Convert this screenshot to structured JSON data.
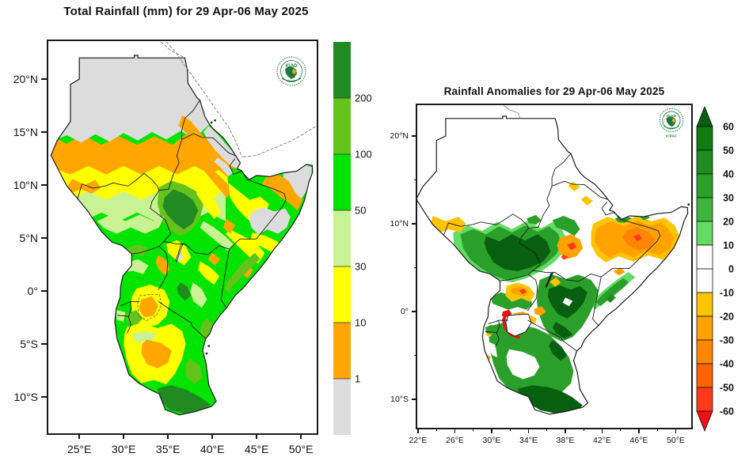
{
  "left_panel": {
    "title": "Total Rainfall (mm) for 29 Apr-06 May 2025",
    "y_ticks": [
      "20°N",
      "15°N",
      "10°N",
      "5°N",
      "0°",
      "5°S",
      "10°S"
    ],
    "x_ticks": [
      "25°E",
      "30°E",
      "35°E",
      "40°E",
      "45°E",
      "50°E"
    ],
    "colorbar": {
      "labels": [
        "200",
        "100",
        "50",
        "30",
        "10",
        "1"
      ],
      "colors": [
        "#218a21",
        "#63c31b",
        "#00e400",
        "#c9f294",
        "#ffff00",
        "#ffa600",
        "#dcdcdc"
      ]
    },
    "logo": {
      "text": "IGAD"
    }
  },
  "right_panel": {
    "title": "Rainfall Anomalies for 29 Apr-06 May 2025",
    "y_ticks": [
      "20°N",
      "10°N",
      "0°",
      "10°S"
    ],
    "x_ticks": [
      "22°E",
      "26°E",
      "30°E",
      "34°E",
      "38°E",
      "42°E",
      "46°E",
      "50°E"
    ],
    "colorbar": {
      "labels": [
        "60",
        "50",
        "40",
        "30",
        "20",
        "10",
        "0",
        "-10",
        "-20",
        "-30",
        "-40",
        "-50",
        "-60"
      ],
      "colors": [
        "#06600f",
        "#117a11",
        "#1e8c1e",
        "#2aa02a",
        "#3eb43e",
        "#62dc62",
        "#ffffff",
        "#ffffff",
        "#ffc300",
        "#ffa200",
        "#ff8400",
        "#ff6200",
        "#ff3a1a",
        "#ee1010"
      ]
    },
    "logo": {
      "text": "IGAD",
      "subtext": "ICPAC"
    }
  }
}
